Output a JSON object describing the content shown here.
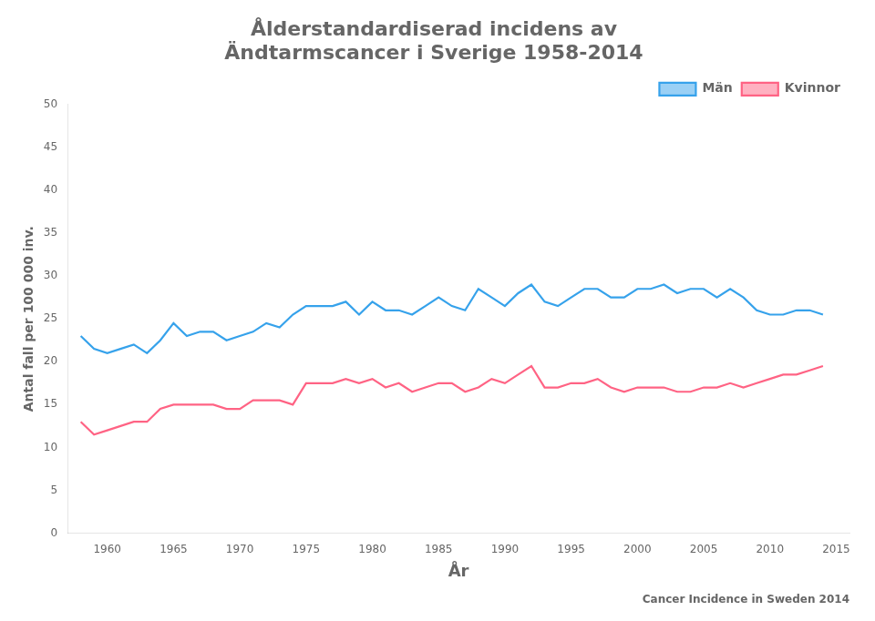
{
  "chart_data": {
    "type": "line",
    "title": [
      "Ålderstandardiserad incidens av",
      "Ändtarmscancer i Sverige 1958-2014"
    ],
    "subtitle": "Cancer Incidence in Sweden 2014",
    "x_label": "År",
    "y_label": "Antal fall per 100 000 inv.",
    "x": [
      1958,
      1959,
      1960,
      1961,
      1962,
      1963,
      1964,
      1965,
      1966,
      1967,
      1968,
      1969,
      1970,
      1971,
      1972,
      1973,
      1974,
      1975,
      1976,
      1977,
      1978,
      1979,
      1980,
      1981,
      1982,
      1983,
      1984,
      1985,
      1986,
      1987,
      1988,
      1989,
      1990,
      1991,
      1992,
      1993,
      1994,
      1995,
      1996,
      1997,
      1998,
      1999,
      2000,
      2001,
      2002,
      2003,
      2004,
      2005,
      2006,
      2007,
      2008,
      2009,
      2010,
      2011,
      2012,
      2013,
      2014
    ],
    "series": [
      {
        "name": "Män",
        "values": [
          23.0,
          21.5,
          21.0,
          21.5,
          22.0,
          21.0,
          22.5,
          24.5,
          23.0,
          23.5,
          23.5,
          22.5,
          23.0,
          23.5,
          24.5,
          24.0,
          25.5,
          26.5,
          26.5,
          26.5,
          27.0,
          25.5,
          27.0,
          26.0,
          26.0,
          25.5,
          26.5,
          27.5,
          26.5,
          26.0,
          28.5,
          27.5,
          26.5,
          28.0,
          29.0,
          27.0,
          26.5,
          27.5,
          28.5,
          28.5,
          27.5,
          27.5,
          28.5,
          28.5,
          29.0,
          28.0,
          28.5,
          28.5,
          27.5,
          28.5,
          27.5,
          26.0,
          25.5,
          25.5,
          26.0,
          26.0,
          25.5
        ]
      },
      {
        "name": "Kvinnor",
        "values": [
          13.0,
          11.5,
          12.0,
          12.5,
          13.0,
          13.0,
          14.5,
          15.0,
          15.0,
          15.0,
          15.0,
          14.5,
          14.5,
          15.5,
          15.5,
          15.5,
          15.0,
          17.5,
          17.5,
          17.5,
          18.0,
          17.5,
          18.0,
          17.0,
          17.5,
          16.5,
          17.0,
          17.5,
          17.5,
          16.5,
          17.0,
          18.0,
          17.5,
          18.5,
          19.5,
          17.0,
          17.0,
          17.5,
          17.5,
          18.0,
          17.0,
          16.5,
          17.0,
          17.0,
          17.0,
          16.5,
          16.5,
          17.0,
          17.0,
          17.5,
          17.0,
          17.5,
          18.0,
          18.5,
          18.5,
          19.0,
          19.5
        ]
      }
    ],
    "xlim": [
      1957,
      2016
    ],
    "xticks": [
      1960,
      1965,
      1970,
      1975,
      1980,
      1985,
      1990,
      1995,
      2000,
      2005,
      2010,
      2015
    ],
    "ylim": [
      0,
      50
    ],
    "yticks": [
      0,
      5,
      10,
      15,
      20,
      25,
      30,
      35,
      40,
      45,
      50
    ],
    "grid": false,
    "legend": "upper right"
  }
}
